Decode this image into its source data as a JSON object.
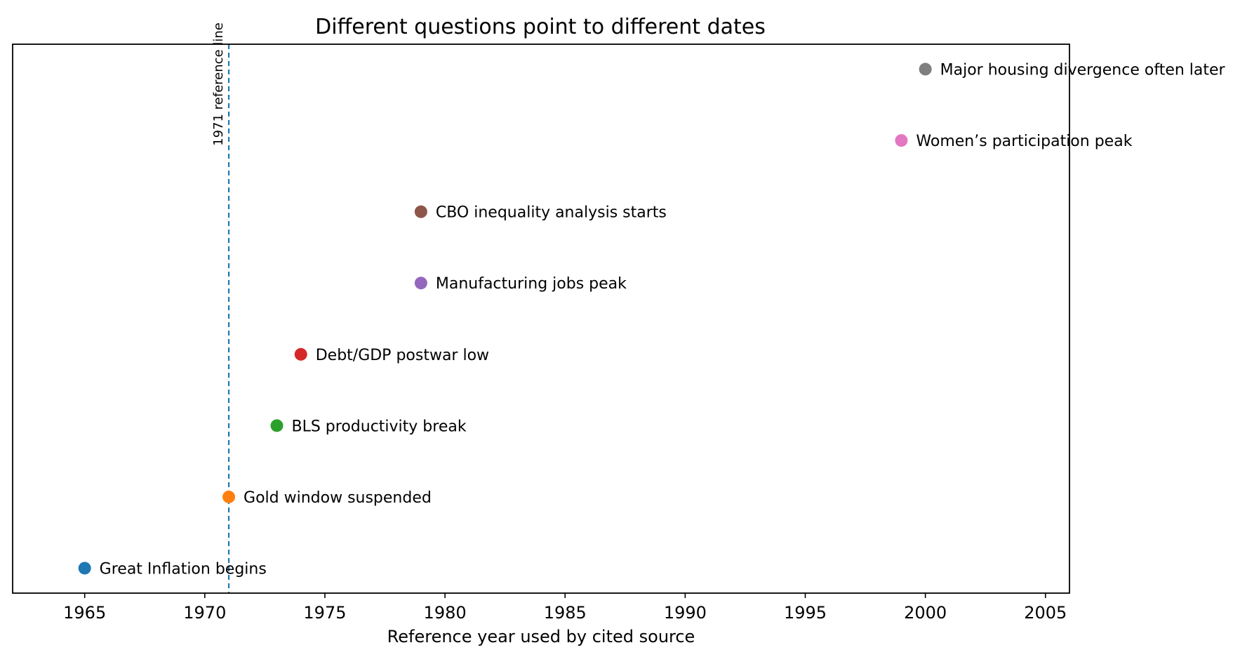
{
  "chart_data": {
    "type": "scatter",
    "title": "Different questions point to different dates",
    "xlabel": "Reference year used by cited source",
    "ylabel": "",
    "xlim": [
      1962,
      2006
    ],
    "ylim": [
      -0.35,
      7.35
    ],
    "xticks": [
      1965,
      1970,
      1975,
      1980,
      1985,
      1990,
      1995,
      2000,
      2005
    ],
    "grid": false,
    "points": [
      {
        "label": "Great Inflation begins",
        "x": 1965,
        "y": 0,
        "color": "#1f77b4"
      },
      {
        "label": "Gold window suspended",
        "x": 1971,
        "y": 1,
        "color": "#ff7f0e"
      },
      {
        "label": "BLS productivity break",
        "x": 1973,
        "y": 2,
        "color": "#2ca02c"
      },
      {
        "label": "Debt/GDP postwar low",
        "x": 1974,
        "y": 3,
        "color": "#d62728"
      },
      {
        "label": "Manufacturing jobs peak",
        "x": 1979,
        "y": 4,
        "color": "#9467bd"
      },
      {
        "label": "CBO inequality analysis starts",
        "x": 1979,
        "y": 5,
        "color": "#8c564b"
      },
      {
        "label": "Women’s participation peak",
        "x": 1999,
        "y": 6,
        "color": "#e377c2"
      },
      {
        "label": "Major housing divergence often later",
        "x": 2000,
        "y": 7,
        "color": "#7f7f7f"
      }
    ],
    "reference_line": {
      "x": 1971,
      "label": "1971 reference line",
      "color": "#1f77b4",
      "style": "dashed"
    }
  }
}
